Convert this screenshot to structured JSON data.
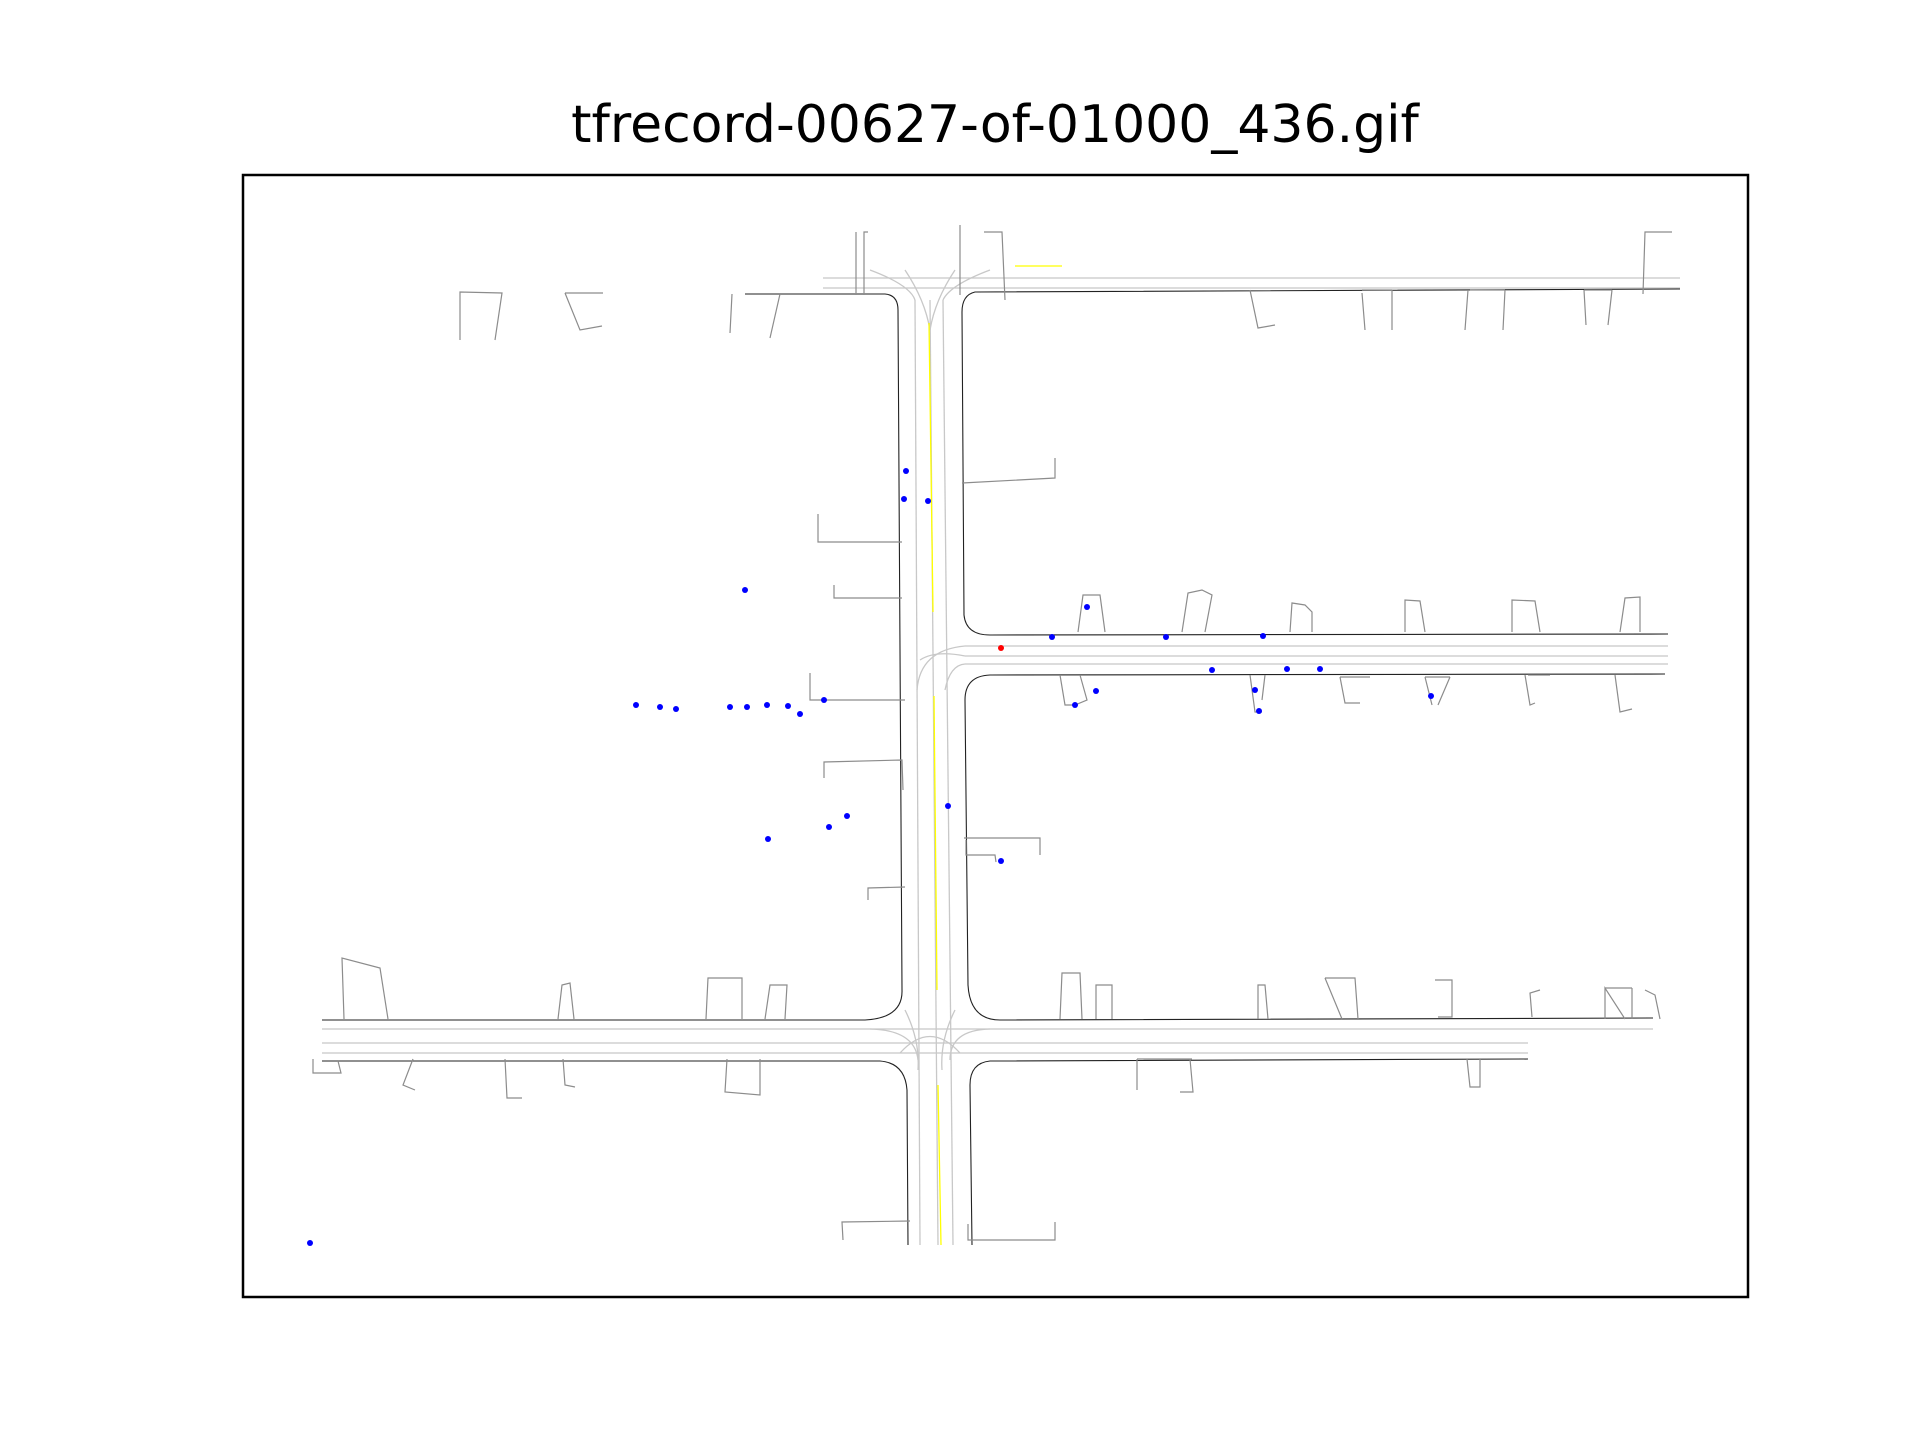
{
  "title": "tfrecord-00627-of-01000_436.gif",
  "colors": {
    "road_edge": "#000000",
    "lane_center": "#c8c8c8",
    "yellow_line": "#ffff00",
    "crosswalk_stub": "#8c8c8c",
    "agent": "#0000ff",
    "ego": "#ff0000"
  }
}
